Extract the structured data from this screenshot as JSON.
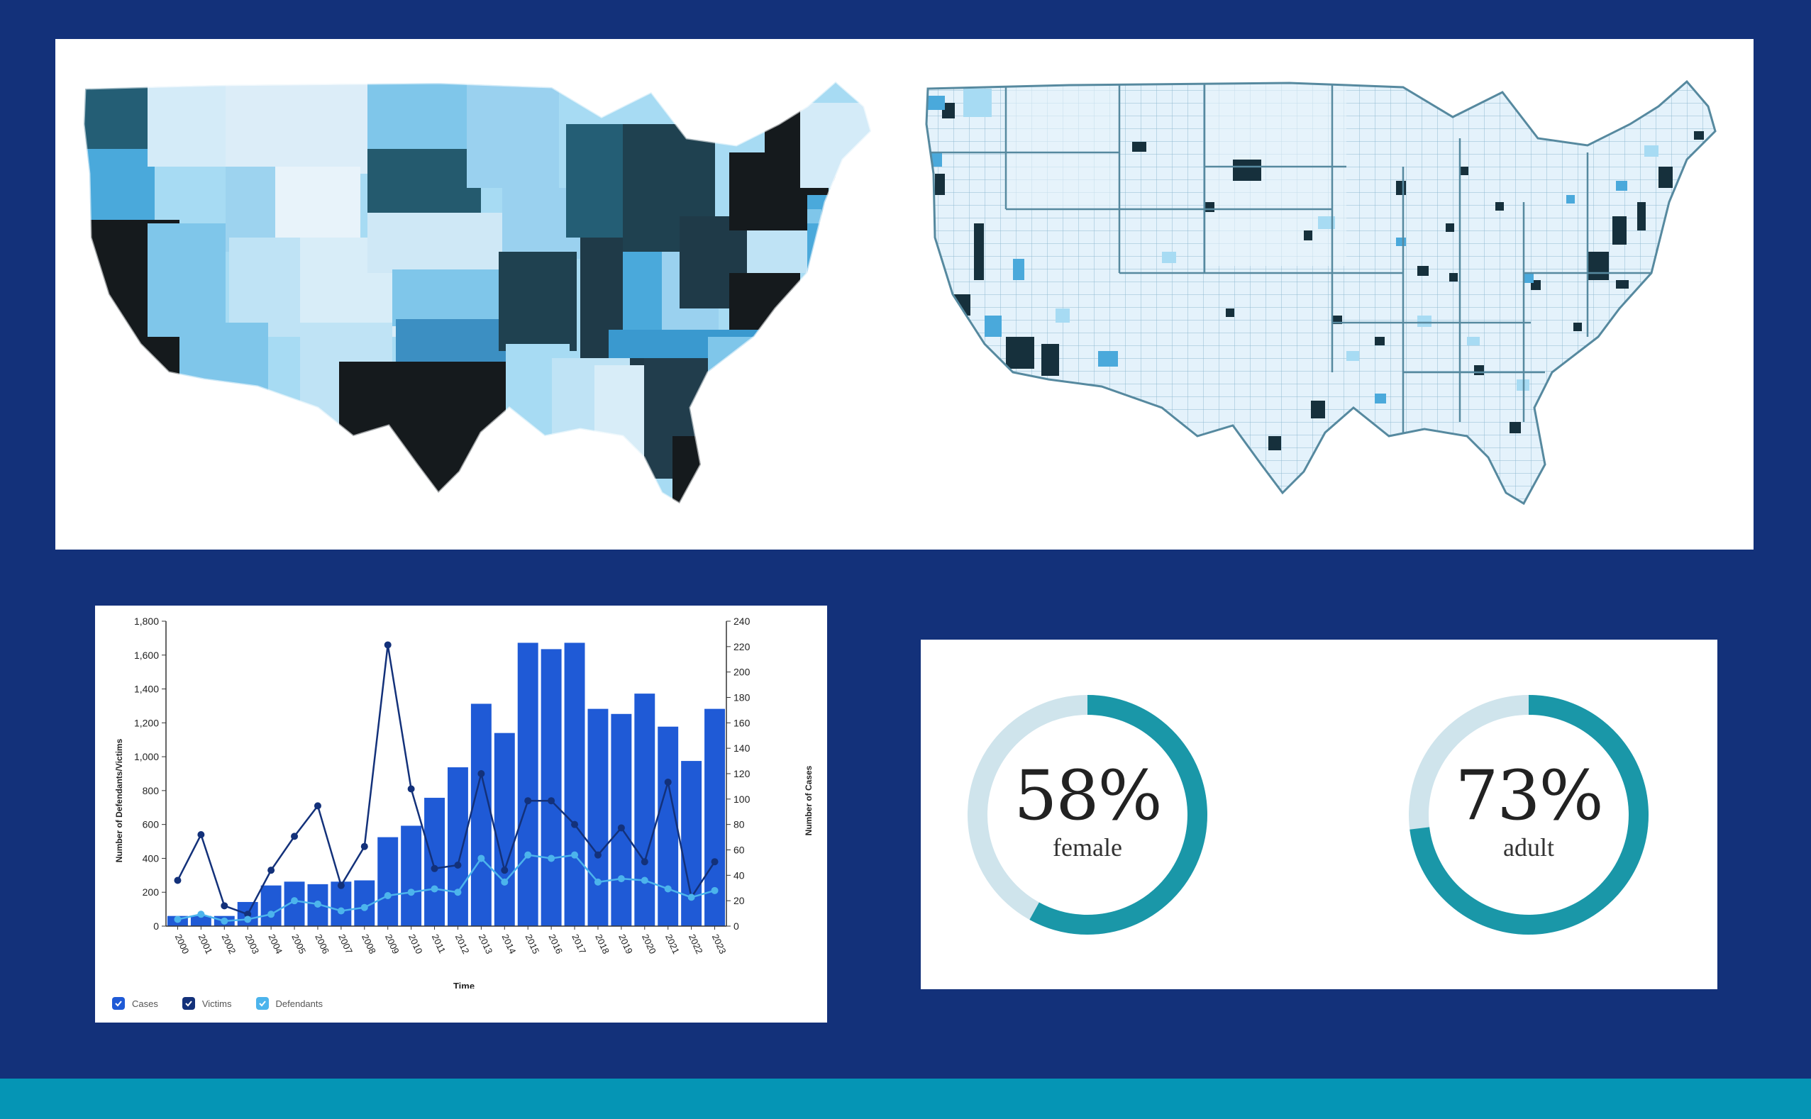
{
  "colors": {
    "background": "#13317a",
    "footer": "#0595b5",
    "cases_bar": "#1f5ad6",
    "victims_line": "#13317a",
    "defendants_line": "#4cb4ec",
    "donut_fill": "#1a97a8",
    "donut_track": "#cfe4ec"
  },
  "maps": {
    "state_map_alt": "Choropleth map of United States by state",
    "county_map_alt": "Choropleth map of United States by county"
  },
  "chart_data": {
    "type": "bar",
    "categories": [
      "2000",
      "2001",
      "2002",
      "2003",
      "2004",
      "2005",
      "2006",
      "2007",
      "2008",
      "2009",
      "2010",
      "2011",
      "2012",
      "2013",
      "2014",
      "2015",
      "2016",
      "2017",
      "2018",
      "2019",
      "2020",
      "2021",
      "2022",
      "2023"
    ],
    "series": [
      {
        "name": "Cases",
        "type": "bar",
        "axis": "right",
        "values": [
          8,
          8,
          8,
          19,
          32,
          35,
          33,
          35,
          36,
          70,
          79,
          101,
          125,
          175,
          152,
          223,
          218,
          223,
          171,
          167,
          183,
          157,
          130,
          171
        ]
      },
      {
        "name": "Victims",
        "type": "line",
        "axis": "left",
        "values": [
          270,
          540,
          120,
          70,
          330,
          530,
          710,
          240,
          470,
          1660,
          810,
          340,
          360,
          900,
          330,
          740,
          740,
          600,
          420,
          580,
          380,
          850,
          170,
          380
        ]
      },
      {
        "name": "Defendants",
        "type": "line",
        "axis": "left",
        "values": [
          40,
          70,
          30,
          40,
          70,
          150,
          130,
          90,
          110,
          180,
          200,
          220,
          200,
          400,
          260,
          420,
          400,
          420,
          260,
          280,
          270,
          220,
          170,
          210
        ]
      }
    ],
    "xlabel": "Time",
    "ylabel": "Number of Defendants/Victims",
    "ylabel_right": "Number of Cases",
    "ylim": [
      0,
      1800
    ],
    "ylim_right": [
      0,
      240
    ],
    "yticks": [
      "0",
      "200",
      "400",
      "600",
      "800",
      "1,000",
      "1,200",
      "1,400",
      "1,600",
      "1,800"
    ],
    "yticks_right": [
      "0",
      "20",
      "40",
      "60",
      "80",
      "100",
      "120",
      "140",
      "160",
      "180",
      "200",
      "220",
      "240"
    ],
    "legend": [
      "Cases",
      "Victims",
      "Defendants"
    ],
    "legend_position": "bottom-left"
  },
  "donuts": [
    {
      "percent": "58%",
      "label": "female",
      "value": 0.58
    },
    {
      "percent": "73%",
      "label": "adult",
      "value": 0.73
    }
  ]
}
